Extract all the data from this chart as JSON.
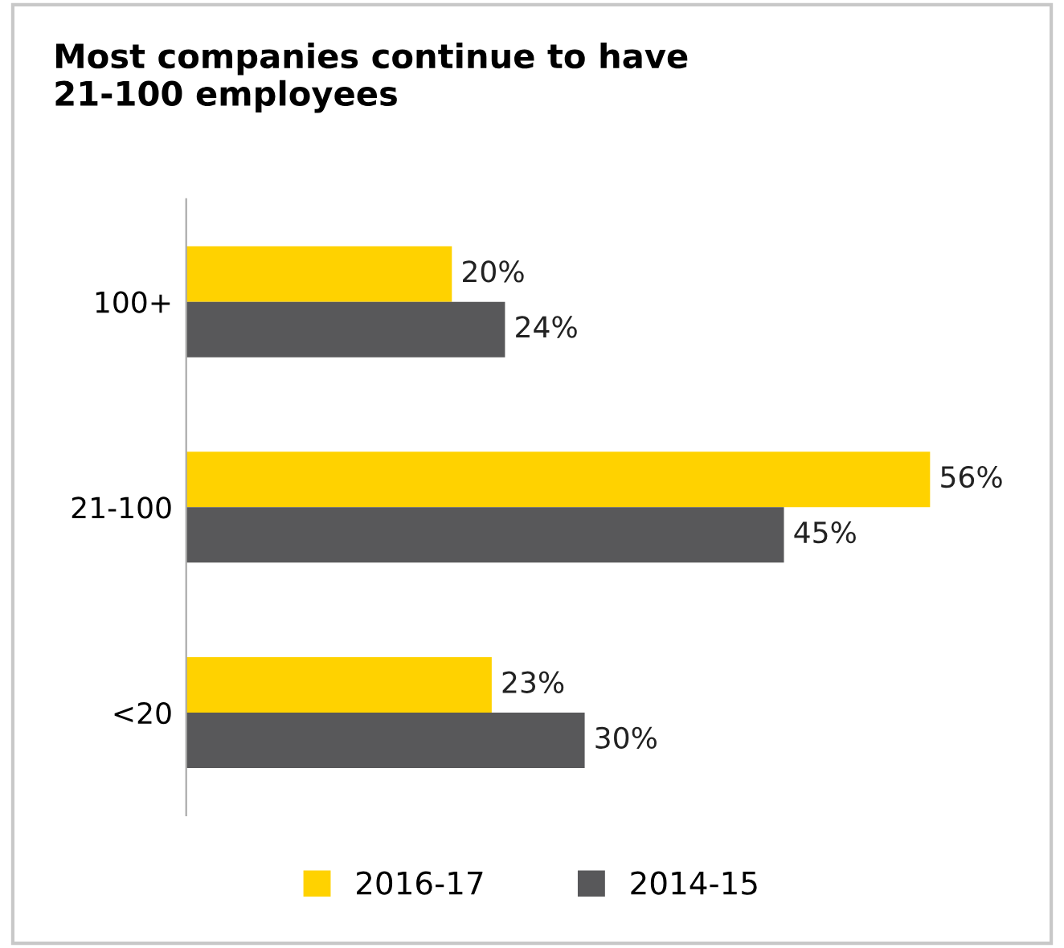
{
  "chart_data": {
    "type": "bar",
    "orientation": "horizontal",
    "title": "Most companies continue to have\n21-100 employees",
    "categories": [
      "100+",
      "21-100",
      "<20"
    ],
    "series": [
      {
        "name": "2016-17",
        "color": "#ffd200",
        "values": [
          20,
          56,
          23
        ],
        "value_labels": [
          "20%",
          "56%",
          "23%"
        ]
      },
      {
        "name": "2014-15",
        "color": "#58585a",
        "values": [
          24,
          45,
          30
        ],
        "value_labels": [
          "24%",
          "45%",
          "30%"
        ]
      }
    ],
    "legend": "bottom",
    "grid": false,
    "tick_labels": "y"
  }
}
